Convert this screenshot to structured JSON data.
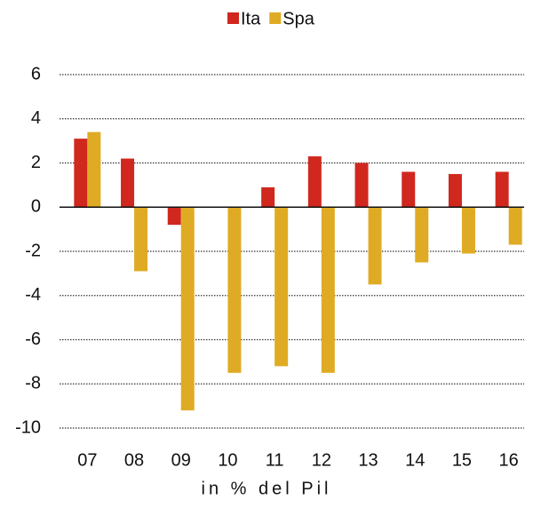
{
  "chart_data": {
    "type": "bar",
    "x_label": "in % del Pil",
    "categories": [
      "07",
      "08",
      "09",
      "10",
      "11",
      "12",
      "13",
      "14",
      "15",
      "16"
    ],
    "series": [
      {
        "name": "Ita",
        "color": "#d0281e",
        "values": [
          3.1,
          2.2,
          -0.8,
          null,
          0.9,
          2.3,
          2.0,
          1.6,
          1.5,
          1.6
        ]
      },
      {
        "name": "Spa",
        "color": "#e0ab24",
        "values": [
          3.4,
          -2.9,
          -9.2,
          -7.5,
          -7.2,
          -7.5,
          -3.5,
          -2.5,
          -2.1,
          -1.7
        ]
      }
    ],
    "ylim": [
      -10,
      6
    ],
    "yticks": [
      -10,
      -8,
      -6,
      -4,
      -2,
      0,
      2,
      4,
      6
    ],
    "grid": true,
    "legend": "top"
  }
}
